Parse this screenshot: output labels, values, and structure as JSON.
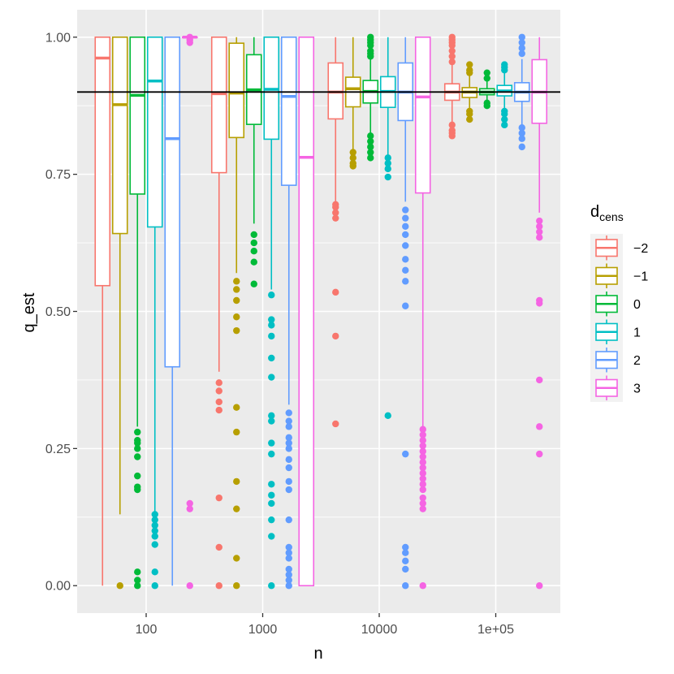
{
  "chart_data": {
    "type": "boxplot",
    "xlabel": "n",
    "ylabel": "q_est",
    "x_scale": "log10",
    "x_ticks": [
      {
        "value": 100,
        "label": "100"
      },
      {
        "value": 1000,
        "label": "1000"
      },
      {
        "value": 10000,
        "label": "10000"
      },
      {
        "value": 100000,
        "label": "1e+05"
      }
    ],
    "y_ticks": [
      {
        "value": 0.0,
        "label": "0.00"
      },
      {
        "value": 0.25,
        "label": "0.25"
      },
      {
        "value": 0.5,
        "label": "0.50"
      },
      {
        "value": 0.75,
        "label": "0.75"
      },
      {
        "value": 1.0,
        "label": "1.00"
      }
    ],
    "ylim": [
      -0.05,
      1.05
    ],
    "reference_line": 0.9,
    "legend": {
      "title_main": "d",
      "title_sub": "cens",
      "entries": [
        {
          "label": "−2",
          "color": "#F8766D"
        },
        {
          "label": "−1",
          "color": "#B79F00"
        },
        {
          "label": "0",
          "color": "#00BA38"
        },
        {
          "label": "1",
          "color": "#00BFC4"
        },
        {
          "label": "2",
          "color": "#619CFF"
        },
        {
          "label": "3",
          "color": "#F564E3"
        }
      ]
    },
    "groups": [
      {
        "n": 100,
        "series": [
          {
            "d": "−2",
            "lower": 0.0,
            "q1": 0.547,
            "median": 0.962,
            "q3": 1.0,
            "upper": 1.0,
            "outliers": []
          },
          {
            "d": "−1",
            "lower": 0.13,
            "q1": 0.642,
            "median": 0.877,
            "q3": 1.0,
            "upper": 1.0,
            "outliers": [
              0.0
            ]
          },
          {
            "d": "0",
            "lower": 0.29,
            "q1": 0.714,
            "median": 0.894,
            "q3": 1.0,
            "upper": 1.0,
            "outliers": [
              0.28,
              0.265,
              0.26,
              0.25,
              0.235,
              0.2,
              0.18,
              0.175,
              0.025,
              0.01,
              0.0
            ]
          },
          {
            "d": "1",
            "lower": 0.135,
            "q1": 0.654,
            "median": 0.92,
            "q3": 1.0,
            "upper": 1.0,
            "outliers": [
              0.13,
              0.12,
              0.11,
              0.1,
              0.09,
              0.075,
              0.025,
              0.0
            ]
          },
          {
            "d": "2",
            "lower": 0.0,
            "q1": 0.399,
            "median": 0.815,
            "q3": 1.0,
            "upper": 1.0,
            "outliers": []
          },
          {
            "d": "3",
            "lower": 1.0,
            "q1": 1.0,
            "median": 1.0,
            "q3": 1.0,
            "upper": 1.0,
            "outliers": [
              1.0,
              0.995,
              0.99,
              0.15,
              0.14,
              0.0
            ]
          }
        ]
      },
      {
        "n": 1000,
        "series": [
          {
            "d": "−2",
            "lower": 0.39,
            "q1": 0.753,
            "median": 0.897,
            "q3": 1.0,
            "upper": 1.0,
            "outliers": [
              0.37,
              0.355,
              0.335,
              0.32,
              0.16,
              0.07,
              0.0
            ]
          },
          {
            "d": "−1",
            "lower": 0.57,
            "q1": 0.817,
            "median": 0.898,
            "q3": 0.989,
            "upper": 1.0,
            "outliers": [
              0.555,
              0.54,
              0.52,
              0.49,
              0.465,
              0.325,
              0.28,
              0.19,
              0.14,
              0.05,
              0.0
            ]
          },
          {
            "d": "0",
            "lower": 0.66,
            "q1": 0.841,
            "median": 0.904,
            "q3": 0.968,
            "upper": 1.0,
            "outliers": [
              0.64,
              0.625,
              0.61,
              0.59,
              0.55
            ]
          },
          {
            "d": "1",
            "lower": 0.54,
            "q1": 0.814,
            "median": 0.905,
            "q3": 1.0,
            "upper": 1.0,
            "outliers": [
              0.53,
              0.485,
              0.475,
              0.455,
              0.415,
              0.38,
              0.31,
              0.3,
              0.26,
              0.24,
              0.185,
              0.165,
              0.15,
              0.12,
              0.09,
              0.0
            ]
          },
          {
            "d": "2",
            "lower": 0.33,
            "q1": 0.73,
            "median": 0.892,
            "q3": 1.0,
            "upper": 1.0,
            "outliers": [
              0.315,
              0.3,
              0.29,
              0.27,
              0.26,
              0.25,
              0.23,
              0.215,
              0.19,
              0.175,
              0.12,
              0.07,
              0.06,
              0.05,
              0.03,
              0.02,
              0.01,
              0.0
            ]
          },
          {
            "d": "3",
            "lower": 0.0,
            "q1": 0.0,
            "median": 0.781,
            "q3": 1.0,
            "upper": 1.0,
            "outliers": []
          }
        ]
      },
      {
        "n": 10000,
        "series": [
          {
            "d": "−2",
            "lower": 0.7,
            "q1": 0.851,
            "median": 0.9,
            "q3": 0.953,
            "upper": 1.0,
            "outliers": [
              0.695,
              0.69,
              0.68,
              0.67,
              0.535,
              0.455,
              0.295
            ]
          },
          {
            "d": "−1",
            "lower": 0.79,
            "q1": 0.873,
            "median": 0.906,
            "q3": 0.927,
            "upper": 1.0,
            "outliers": [
              0.79,
              0.78,
              0.77,
              0.765
            ]
          },
          {
            "d": "0",
            "lower": 0.82,
            "q1": 0.88,
            "median": 0.901,
            "q3": 0.921,
            "upper": 0.96,
            "outliers": [
              1.0,
              0.995,
              0.99,
              0.985,
              0.975,
              0.97,
              0.965,
              0.82,
              0.81,
              0.8,
              0.79,
              0.78
            ]
          },
          {
            "d": "1",
            "lower": 0.785,
            "q1": 0.872,
            "median": 0.901,
            "q3": 0.928,
            "upper": 1.0,
            "outliers": [
              0.78,
              0.77,
              0.76,
              0.745,
              0.31
            ]
          },
          {
            "d": "2",
            "lower": 0.7,
            "q1": 0.848,
            "median": 0.9,
            "q3": 0.953,
            "upper": 1.0,
            "outliers": [
              0.685,
              0.67,
              0.655,
              0.64,
              0.62,
              0.595,
              0.575,
              0.555,
              0.51,
              0.24,
              0.07,
              0.06,
              0.045,
              0.03,
              0.0
            ]
          },
          {
            "d": "3",
            "lower": 0.29,
            "q1": 0.716,
            "median": 0.891,
            "q3": 1.0,
            "upper": 1.0,
            "outliers": [
              0.285,
              0.275,
              0.265,
              0.255,
              0.245,
              0.235,
              0.225,
              0.215,
              0.205,
              0.195,
              0.185,
              0.175,
              0.16,
              0.15,
              0.14,
              0.0
            ]
          }
        ]
      },
      {
        "n": 100000,
        "series": [
          {
            "d": "−2",
            "lower": 0.845,
            "q1": 0.885,
            "median": 0.9,
            "q3": 0.915,
            "upper": 0.955,
            "outliers": [
              1.0,
              0.995,
              0.99,
              0.985,
              0.975,
              0.965,
              0.955,
              0.84,
              0.83,
              0.825,
              0.82
            ]
          },
          {
            "d": "−1",
            "lower": 0.87,
            "q1": 0.89,
            "median": 0.9,
            "q3": 0.908,
            "upper": 0.93,
            "outliers": [
              0.95,
              0.94,
              0.935,
              0.865,
              0.86,
              0.85
            ]
          },
          {
            "d": "0",
            "lower": 0.88,
            "q1": 0.895,
            "median": 0.9,
            "q3": 0.906,
            "upper": 0.92,
            "outliers": [
              0.935,
              0.925,
              0.88,
              0.875
            ]
          },
          {
            "d": "1",
            "lower": 0.87,
            "q1": 0.893,
            "median": 0.902,
            "q3": 0.912,
            "upper": 0.935,
            "outliers": [
              0.95,
              0.945,
              0.94,
              0.865,
              0.86,
              0.85,
              0.84
            ]
          },
          {
            "d": "2",
            "lower": 0.84,
            "q1": 0.883,
            "median": 0.9,
            "q3": 0.917,
            "upper": 0.96,
            "outliers": [
              1.0,
              0.99,
              0.98,
              0.97,
              0.835,
              0.825,
              0.815,
              0.8
            ]
          },
          {
            "d": "3",
            "lower": 0.68,
            "q1": 0.843,
            "median": 0.9,
            "q3": 0.959,
            "upper": 1.0,
            "outliers": [
              0.665,
              0.655,
              0.645,
              0.635,
              0.52,
              0.515,
              0.375,
              0.29,
              0.24,
              0.0
            ]
          }
        ]
      }
    ]
  }
}
